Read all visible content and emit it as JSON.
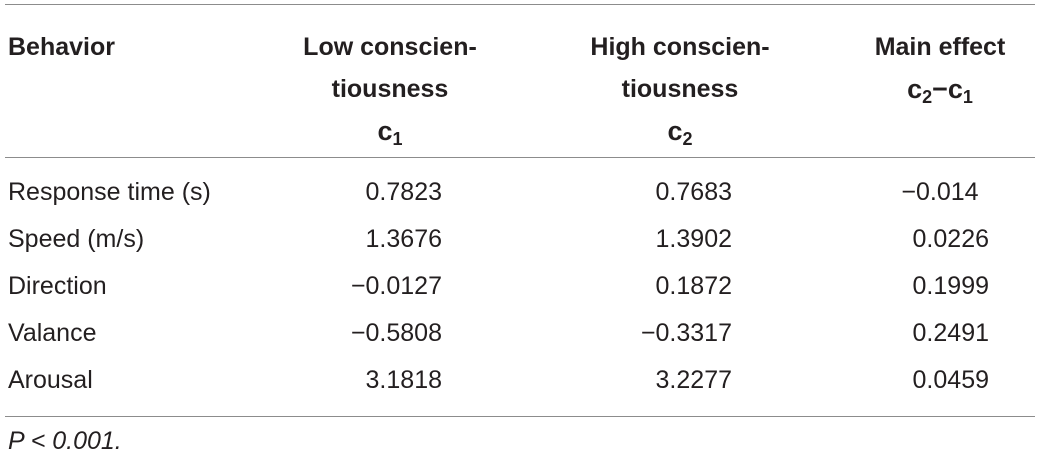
{
  "table": {
    "headers": {
      "behavior": "Behavior",
      "low_line1": "Low conscien-",
      "low_line2": "tiousness",
      "low_sym": "c",
      "low_sub": "1",
      "high_line1": "High conscien-",
      "high_line2": "tiousness",
      "high_sym": "c",
      "high_sub": "2",
      "main_line1": "Main effect",
      "main_sym_a": "c",
      "main_sub_a": "2",
      "main_minus": "−",
      "main_sym_b": "c",
      "main_sub_b": "1"
    },
    "rows": [
      {
        "behavior": "Response time (s)",
        "c1": "0.7823",
        "c2": "0.7683",
        "effect": "−0.014"
      },
      {
        "behavior": "Speed (m/s)",
        "c1": "1.3676",
        "c2": "1.3902",
        "effect": "0.0226"
      },
      {
        "behavior": "Direction",
        "c1": "−0.0127",
        "c2": "0.1872",
        "effect": "0.1999"
      },
      {
        "behavior": "Valance",
        "c1": "−0.5808",
        "c2": "−0.3317",
        "effect": "0.2491"
      },
      {
        "behavior": "Arousal",
        "c1": "3.1818",
        "c2": "3.2277",
        "effect": "0.0459"
      }
    ],
    "footnote": "P < 0.001."
  }
}
